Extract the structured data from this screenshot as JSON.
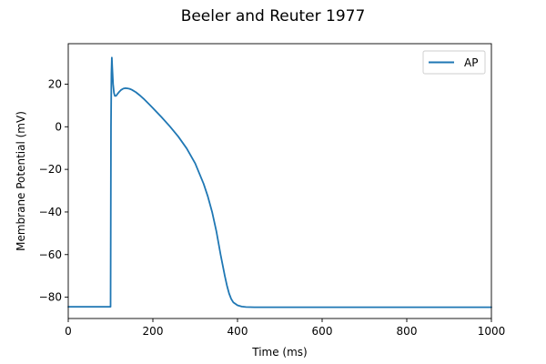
{
  "chart_data": {
    "type": "line",
    "title": "Beeler and Reuter 1977",
    "xlabel": "Time (ms)",
    "ylabel": "Membrane Potential (mV)",
    "xlim": [
      0,
      1000
    ],
    "ylim": [
      -90,
      39
    ],
    "xticks": [
      0,
      200,
      400,
      600,
      800,
      1000
    ],
    "yticks": [
      -80,
      -60,
      -40,
      -20,
      0,
      20
    ],
    "grid": false,
    "legend_position": "top-right",
    "series": [
      {
        "name": "AP",
        "color": "#1f77b4",
        "x": [
          0,
          100,
          101,
          102,
          103,
          104,
          106,
          108,
          110,
          113,
          116,
          120,
          125,
          130,
          135,
          140,
          145,
          150,
          160,
          170,
          180,
          190,
          200,
          220,
          240,
          260,
          280,
          300,
          320,
          330,
          340,
          350,
          360,
          365,
          370,
          375,
          380,
          385,
          390,
          400,
          410,
          420,
          440,
          460,
          500,
          600,
          700,
          800,
          900,
          1000
        ],
        "y": [
          -84.5,
          -84.5,
          0,
          25,
          32.5,
          28,
          20,
          16,
          14.5,
          14.5,
          15.3,
          16.3,
          17.3,
          17.9,
          18.1,
          18,
          17.8,
          17.4,
          16.2,
          14.6,
          12.8,
          10.8,
          8.8,
          4.6,
          0.2,
          -4.6,
          -10.2,
          -17.2,
          -26.8,
          -32.8,
          -40,
          -49,
          -60,
          -65,
          -70,
          -74.5,
          -78.2,
          -80.8,
          -82.4,
          -83.8,
          -84.4,
          -84.6,
          -84.7,
          -84.7,
          -84.7,
          -84.7,
          -84.7,
          -84.7,
          -84.7,
          -84.7
        ]
      }
    ]
  }
}
